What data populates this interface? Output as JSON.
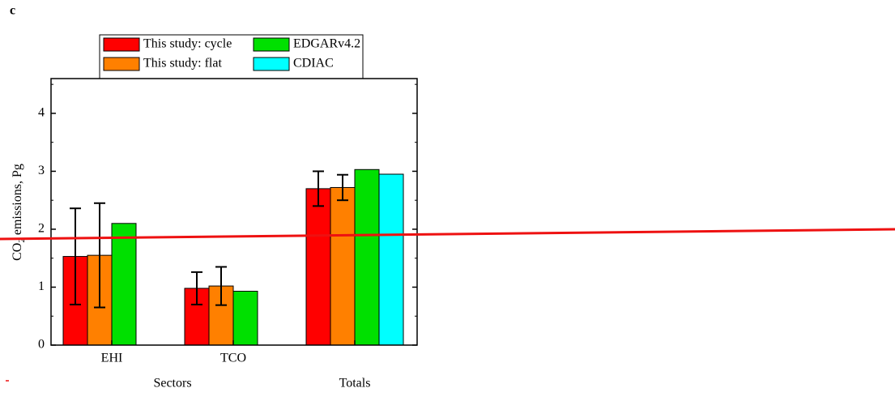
{
  "chart_data": {
    "type": "bar",
    "panel_label": "c",
    "y_label_parts": [
      "CO",
      "2",
      " emissions, Pg"
    ],
    "categories": [
      "EHI",
      "TCO",
      null
    ],
    "group_labels": [
      "Sectors",
      "Totals"
    ],
    "series": [
      {
        "name": "This study: cycle",
        "color": "#ff0000",
        "values": [
          1.53,
          0.98,
          2.7
        ],
        "errors": [
          0.83,
          0.28,
          0.3
        ]
      },
      {
        "name": "This study: flat",
        "color": "#ff8000",
        "values": [
          1.55,
          1.02,
          2.72
        ],
        "errors": [
          0.9,
          0.33,
          0.22
        ]
      },
      {
        "name": "EDGARv4.2",
        "color": "#00e000",
        "values": [
          2.1,
          0.93,
          3.03
        ]
      },
      {
        "name": "CDIAC",
        "color": "#00ffff",
        "values": [
          null,
          null,
          2.95
        ]
      }
    ],
    "ylim": [
      0,
      4.6
    ],
    "yticks": [
      0,
      1,
      2,
      3,
      4
    ],
    "yticks_minor": [
      0.5,
      1.5,
      2.5,
      3.5,
      4.5
    ]
  }
}
